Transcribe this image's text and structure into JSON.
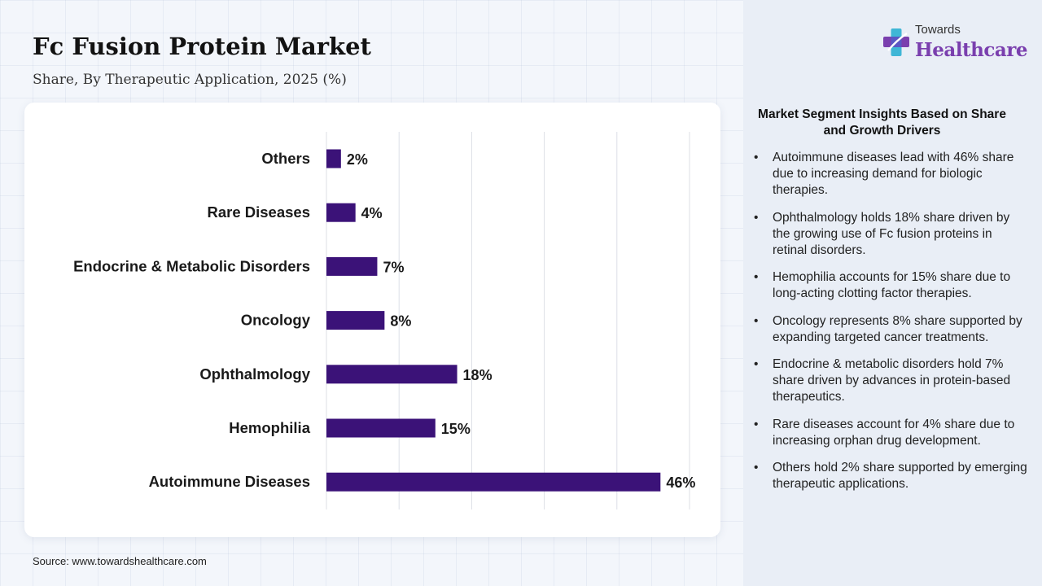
{
  "title": "Fc Fusion Protein Market",
  "subtitle": "Share, By Therapeutic Application, 2025 (%)",
  "source": "Source: www.towardshealthcare.com",
  "brand": {
    "top": "Towards",
    "bottom": "Healthcare",
    "mark_icon": "plus-cross-icon",
    "colors": {
      "primary": "#7a3fae",
      "accent": "#3fb6d6"
    }
  },
  "insights": {
    "title": "Market Segment Insights Based on Share and Growth Drivers",
    "items": [
      "Autoimmune diseases lead with 46% share due to increasing demand for biologic therapies.",
      "Ophthalmology holds 18% share driven by the growing use of Fc fusion proteins in retinal disorders.",
      "Hemophilia accounts for 15% share due to long-acting clotting factor therapies.",
      "Oncology represents 8% share supported by expanding targeted cancer treatments.",
      "Endocrine & metabolic disorders hold 7% share driven by advances in protein-based therapeutics.",
      "Rare diseases account for 4% share due to increasing orphan drug development.",
      "Others hold 2% share supported by emerging therapeutic applications."
    ]
  },
  "chart_data": {
    "type": "bar",
    "orientation": "horizontal",
    "categories": [
      "Others",
      "Rare Diseases",
      "Endocrine & Metabolic Disorders",
      "Oncology",
      "Ophthalmology",
      "Hemophilia",
      "Autoimmune Diseases"
    ],
    "values": [
      2,
      4,
      7,
      8,
      18,
      15,
      46
    ],
    "value_labels": [
      "2%",
      "4%",
      "7%",
      "8%",
      "18%",
      "15%",
      "46%"
    ],
    "xlim": [
      0,
      50
    ],
    "grid": true,
    "bar_color": "#3b1278"
  }
}
